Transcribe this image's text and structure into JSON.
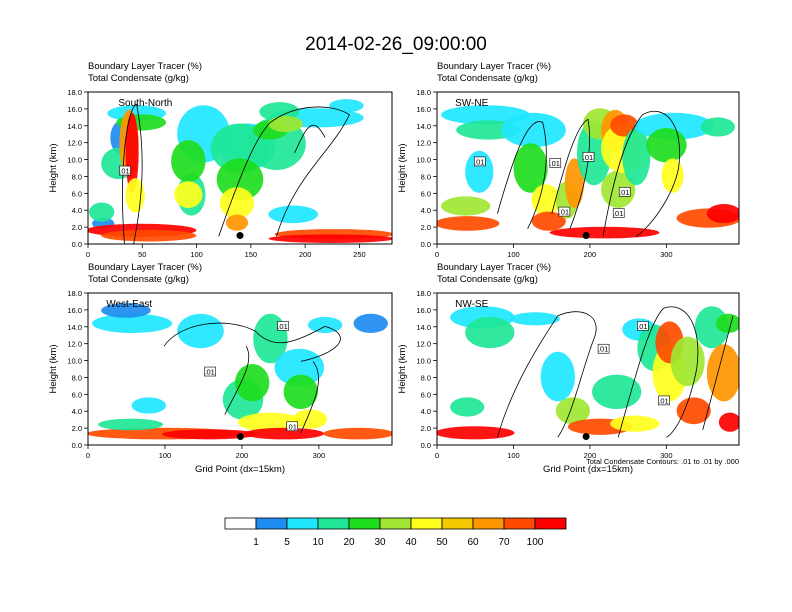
{
  "figure": {
    "title": "2014-02-26_09:00:00",
    "note": "Total Condensate Contours: .01 to .01 by .000",
    "colors": [
      "#ffffff",
      "#1e8cf0",
      "#1ee6ff",
      "#1ee696",
      "#1edc1e",
      "#a0e632",
      "#ffff1e",
      "#f5c800",
      "#ff9600",
      "#ff4b00",
      "#ff0000"
    ]
  },
  "colorbar": {
    "labels": [
      "1",
      "5",
      "10",
      "20",
      "30",
      "40",
      "50",
      "60",
      "70",
      "100"
    ]
  },
  "chart_data": [
    {
      "type": "heatmap",
      "title_line1": "Boundary Layer Tracer   (%)",
      "title_line2": "Total Condensate   (g/kg)",
      "region": "South-North",
      "ylabel": "Height (km)",
      "xlabel": "",
      "xlim": [
        0,
        280
      ],
      "ylim": [
        0,
        18
      ],
      "xticks": [
        "0",
        "50",
        "100",
        "150",
        "200",
        "250"
      ],
      "yticks": [
        "0.0",
        "2.0",
        "4.0",
        "6.0",
        "8.0",
        "10.0",
        "12.0",
        "14.0",
        "16.0",
        "18.0"
      ],
      "contour_labels": [
        ".01"
      ],
      "marker": {
        "x": 140,
        "y": 1.0
      }
    },
    {
      "type": "heatmap",
      "title_line1": "Boundary Layer Tracer   (%)",
      "title_line2": "Total Condensate   (g/kg)",
      "region": "SW-NE",
      "ylabel": "Height (km)",
      "xlabel": "",
      "xlim": [
        0,
        395
      ],
      "ylim": [
        0,
        18
      ],
      "xticks": [
        "0",
        "100",
        "200",
        "300"
      ],
      "yticks": [
        "0.0",
        "2.0",
        "4.0",
        "6.0",
        "8.0",
        "10.0",
        "12.0",
        "14.0",
        "16.0",
        "18.0"
      ],
      "contour_labels": [
        ".01",
        ".01",
        ".01",
        ".01",
        ".01",
        ".01"
      ],
      "marker": {
        "x": 195,
        "y": 1.0
      }
    },
    {
      "type": "heatmap",
      "title_line1": "Boundary Layer Tracer   (%)",
      "title_line2": "Total Condensate   (g/kg)",
      "region": "West-East",
      "ylabel": "Height (km)",
      "xlabel": "Grid Point (dx=15km)",
      "xlim": [
        0,
        395
      ],
      "ylim": [
        0,
        18
      ],
      "xticks": [
        "0",
        "100",
        "200",
        "300"
      ],
      "yticks": [
        "0.0",
        "2.0",
        "4.0",
        "6.0",
        "8.0",
        "10.0",
        "12.0",
        "14.0",
        "16.0",
        "18.0"
      ],
      "contour_labels": [
        ".01",
        ".01",
        ".01"
      ],
      "marker": {
        "x": 198,
        "y": 1.0
      }
    },
    {
      "type": "heatmap",
      "title_line1": "Boundary Layer Tracer   (%)",
      "title_line2": "Total Condensate   (g/kg)",
      "region": "NW-SE",
      "ylabel": "Height (km)",
      "xlabel": "Grid Point (dx=15km)",
      "xlim": [
        0,
        395
      ],
      "ylim": [
        0,
        18
      ],
      "xticks": [
        "0",
        "100",
        "200",
        "300"
      ],
      "yticks": [
        "0.0",
        "2.0",
        "4.0",
        "6.0",
        "8.0",
        "10.0",
        "12.0",
        "14.0",
        "16.0",
        "18.0"
      ],
      "contour_labels": [
        ".01",
        ".01",
        ".01"
      ],
      "marker": {
        "x": 195,
        "y": 1.0
      }
    }
  ]
}
